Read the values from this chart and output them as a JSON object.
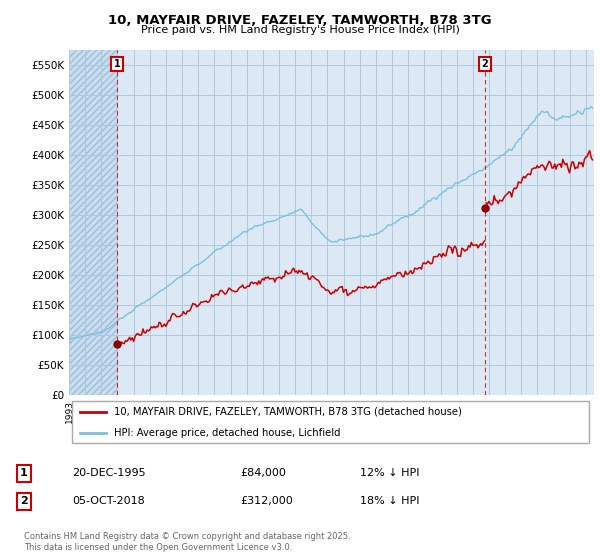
{
  "title": "10, MAYFAIR DRIVE, FAZELEY, TAMWORTH, B78 3TG",
  "subtitle": "Price paid vs. HM Land Registry's House Price Index (HPI)",
  "ylim": [
    0,
    575000
  ],
  "yticks": [
    0,
    50000,
    100000,
    150000,
    200000,
    250000,
    300000,
    350000,
    400000,
    450000,
    500000,
    550000
  ],
  "ytick_labels": [
    "£0",
    "£50K",
    "£100K",
    "£150K",
    "£200K",
    "£250K",
    "£300K",
    "£350K",
    "£400K",
    "£450K",
    "£500K",
    "£550K"
  ],
  "hpi_color": "#7fbfdf",
  "price_color": "#cc0000",
  "annotation_box_color": "#cc0000",
  "background_color": "#ffffff",
  "chart_bg_color": "#dce9f5",
  "hatch_color": "#b0c8e0",
  "grid_color": "#aec8e0",
  "legend_label_price": "10, MAYFAIR DRIVE, FAZELEY, TAMWORTH, B78 3TG (detached house)",
  "legend_label_hpi": "HPI: Average price, detached house, Lichfield",
  "sale1_date": "20-DEC-1995",
  "sale1_price": "£84,000",
  "sale1_note": "12% ↓ HPI",
  "sale2_date": "05-OCT-2018",
  "sale2_price": "£312,000",
  "sale2_note": "18% ↓ HPI",
  "copyright_text": "Contains HM Land Registry data © Crown copyright and database right 2025.\nThis data is licensed under the Open Government Licence v3.0.",
  "sale1_year": 1995.97,
  "sale1_value": 84000,
  "sale2_year": 2018.76,
  "sale2_value": 312000,
  "xmin": 1993.0,
  "xmax": 2025.5
}
